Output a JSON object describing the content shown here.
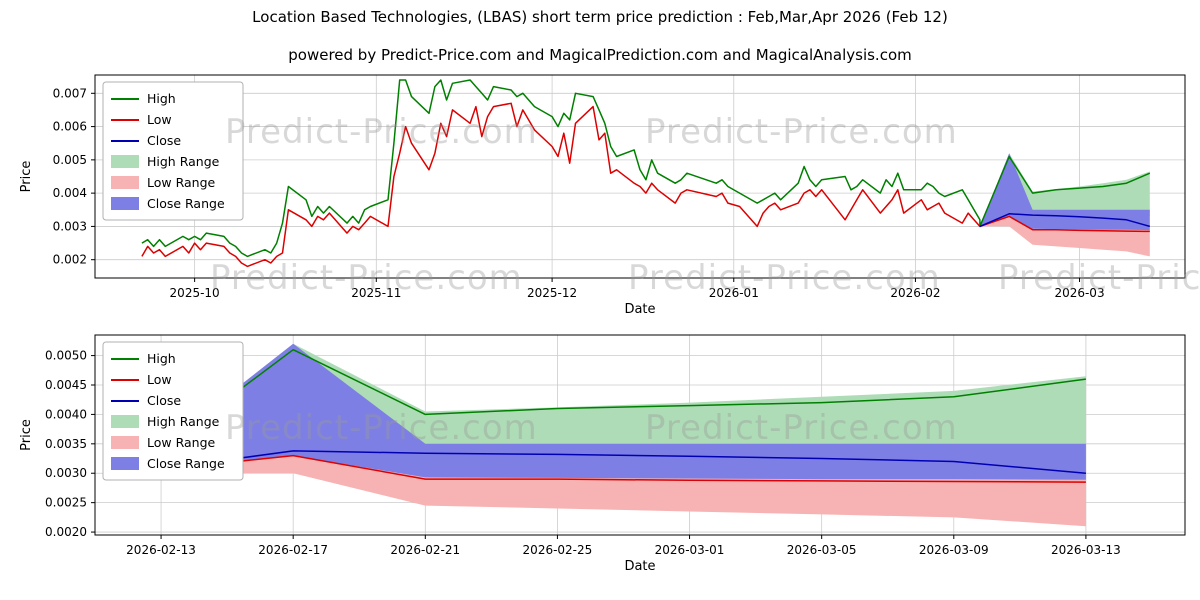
{
  "chart_data": {
    "type": "line",
    "title": "Location Based Technologies, (LBAS) short term price prediction : Feb,Mar,Apr 2026 (Feb 12)",
    "subtitle": "powered by Predict-Price.com and MagicalPrediction.com and MagicalAnalysis.com",
    "watermark": "Predict-Price.com",
    "colors": {
      "high": "#008000",
      "low": "#dd0000",
      "close": "#0000b3",
      "high_range": "#aedcb7",
      "low_range": "#f7b3b3",
      "close_range": "#7e7fe4",
      "grid": "#cccccc",
      "frame": "#000000"
    },
    "legend": [
      {
        "label": "High",
        "swatch": "line",
        "color_key": "high"
      },
      {
        "label": "Low",
        "swatch": "line",
        "color_key": "low"
      },
      {
        "label": "Close",
        "swatch": "line",
        "color_key": "close"
      },
      {
        "label": "High Range",
        "swatch": "patch",
        "color_key": "high_range"
      },
      {
        "label": "Low Range",
        "swatch": "patch",
        "color_key": "low_range"
      },
      {
        "label": "Close Range",
        "swatch": "patch",
        "color_key": "close_range"
      }
    ],
    "forecast": {
      "x": [
        "2026-02-12",
        "2026-02-17",
        "2026-02-21",
        "2026-02-25",
        "2026-03-01",
        "2026-03-05",
        "2026-03-09",
        "2026-03-13"
      ],
      "high": [
        0.003,
        0.0051,
        0.004,
        0.0041,
        0.00415,
        0.0042,
        0.0043,
        0.0046
      ],
      "low": [
        0.003,
        0.0033,
        0.0029,
        0.0029,
        0.00288,
        0.00287,
        0.00286,
        0.00285
      ],
      "close": [
        0.003,
        0.00338,
        0.00334,
        0.00332,
        0.00329,
        0.00325,
        0.0032,
        0.003
      ],
      "bands": [
        {
          "key": "high_range",
          "label": "High Range",
          "upper": [
            0.003,
            0.0052,
            0.00405,
            0.00412,
            0.0042,
            0.0043,
            0.0044,
            0.00465
          ],
          "lower": [
            0.003,
            0.00335,
            0.0033,
            0.0033,
            0.0033,
            0.0033,
            0.0033,
            0.0033
          ]
        },
        {
          "key": "low_range",
          "label": "Low Range",
          "upper": [
            0.003,
            0.00335,
            0.00295,
            0.00295,
            0.00293,
            0.00292,
            0.00291,
            0.0029
          ],
          "lower": [
            0.003,
            0.003,
            0.00245,
            0.0024,
            0.00235,
            0.0023,
            0.00225,
            0.0021
          ]
        },
        {
          "key": "close_range",
          "label": "Close Range",
          "upper": [
            0.003,
            0.0052,
            0.0035,
            0.0035,
            0.0035,
            0.0035,
            0.0035,
            0.0035
          ],
          "lower": [
            0.003,
            0.0033,
            0.00293,
            0.00292,
            0.00291,
            0.0029,
            0.0029,
            0.00289
          ]
        }
      ]
    },
    "charts": [
      {
        "id": "top",
        "xlabel": "Date",
        "ylabel": "Price",
        "xlim": [
          "2025-09-14",
          "2026-03-19"
        ],
        "ylim": [
          0.00145,
          0.00755
        ],
        "yticks": [
          {
            "v": 0.002,
            "label": "0.002"
          },
          {
            "v": 0.003,
            "label": "0.003"
          },
          {
            "v": 0.004,
            "label": "0.004"
          },
          {
            "v": 0.005,
            "label": "0.005"
          },
          {
            "v": 0.006,
            "label": "0.006"
          },
          {
            "v": 0.007,
            "label": "0.007"
          }
        ],
        "xticks": [
          {
            "v": "2025-10-01",
            "label": "2025-10"
          },
          {
            "v": "2025-11-01",
            "label": "2025-11"
          },
          {
            "v": "2025-12-01",
            "label": "2025-12"
          },
          {
            "v": "2026-01-01",
            "label": "2026-01"
          },
          {
            "v": "2026-02-01",
            "label": "2026-02"
          },
          {
            "v": "2026-03-01",
            "label": "2026-03"
          }
        ],
        "history": {
          "x": [
            "2025-09-22",
            "2025-09-23",
            "2025-09-24",
            "2025-09-25",
            "2025-09-26",
            "2025-09-29",
            "2025-09-30",
            "2025-10-01",
            "2025-10-02",
            "2025-10-03",
            "2025-10-06",
            "2025-10-07",
            "2025-10-08",
            "2025-10-09",
            "2025-10-10",
            "2025-10-13",
            "2025-10-14",
            "2025-10-15",
            "2025-10-16",
            "2025-10-17",
            "2025-10-20",
            "2025-10-21",
            "2025-10-22",
            "2025-10-23",
            "2025-10-24",
            "2025-10-27",
            "2025-10-28",
            "2025-10-29",
            "2025-10-30",
            "2025-10-31",
            "2025-11-03",
            "2025-11-04",
            "2025-11-05",
            "2025-11-06",
            "2025-11-07",
            "2025-11-10",
            "2025-11-11",
            "2025-11-12",
            "2025-11-13",
            "2025-11-14",
            "2025-11-17",
            "2025-11-18",
            "2025-11-19",
            "2025-11-20",
            "2025-11-21",
            "2025-11-24",
            "2025-11-25",
            "2025-11-26",
            "2025-11-28",
            "2025-12-01",
            "2025-12-02",
            "2025-12-03",
            "2025-12-04",
            "2025-12-05",
            "2025-12-08",
            "2025-12-09",
            "2025-12-10",
            "2025-12-11",
            "2025-12-12",
            "2025-12-15",
            "2025-12-16",
            "2025-12-17",
            "2025-12-18",
            "2025-12-19",
            "2025-12-22",
            "2025-12-23",
            "2025-12-24",
            "2025-12-29",
            "2025-12-30",
            "2025-12-31",
            "2026-01-02",
            "2026-01-05",
            "2026-01-06",
            "2026-01-07",
            "2026-01-08",
            "2026-01-09",
            "2026-01-12",
            "2026-01-13",
            "2026-01-14",
            "2026-01-15",
            "2026-01-16",
            "2026-01-20",
            "2026-01-21",
            "2026-01-22",
            "2026-01-23",
            "2026-01-26",
            "2026-01-27",
            "2026-01-28",
            "2026-01-29",
            "2026-01-30",
            "2026-02-02",
            "2026-02-03",
            "2026-02-04",
            "2026-02-05",
            "2026-02-06",
            "2026-02-09",
            "2026-02-10",
            "2026-02-11",
            "2026-02-12"
          ],
          "high": [
            0.0025,
            0.0026,
            0.0024,
            0.0026,
            0.0024,
            0.0027,
            0.0026,
            0.0027,
            0.0026,
            0.0028,
            0.0027,
            0.0025,
            0.0024,
            0.0022,
            0.0021,
            0.0023,
            0.0022,
            0.0025,
            0.0031,
            0.0042,
            0.0038,
            0.0033,
            0.0036,
            0.0034,
            0.0036,
            0.0031,
            0.0033,
            0.0031,
            0.0035,
            0.0036,
            0.0038,
            0.0055,
            0.0074,
            0.0074,
            0.0069,
            0.0064,
            0.0072,
            0.0074,
            0.0068,
            0.0073,
            0.0074,
            0.0072,
            0.007,
            0.0068,
            0.0072,
            0.0071,
            0.0069,
            0.007,
            0.0066,
            0.0063,
            0.006,
            0.0064,
            0.0062,
            0.007,
            0.0069,
            0.0065,
            0.0061,
            0.0054,
            0.0051,
            0.0053,
            0.0047,
            0.0044,
            0.005,
            0.0046,
            0.0043,
            0.0044,
            0.0046,
            0.0043,
            0.0044,
            0.0042,
            0.004,
            0.0037,
            0.0038,
            0.0039,
            0.004,
            0.0038,
            0.0043,
            0.0048,
            0.0044,
            0.0042,
            0.0044,
            0.0045,
            0.0041,
            0.0042,
            0.0044,
            0.004,
            0.0044,
            0.0042,
            0.0046,
            0.0041,
            0.0041,
            0.0043,
            0.0042,
            0.004,
            0.0039,
            0.0041,
            0.0038,
            0.0035,
            0.0032
          ],
          "low": [
            0.0021,
            0.0024,
            0.0022,
            0.0023,
            0.0021,
            0.0024,
            0.0022,
            0.0025,
            0.0023,
            0.0025,
            0.0024,
            0.0022,
            0.0021,
            0.0019,
            0.0018,
            0.002,
            0.0019,
            0.0021,
            0.0022,
            0.0035,
            0.0032,
            0.003,
            0.0033,
            0.0032,
            0.0034,
            0.0028,
            0.003,
            0.0029,
            0.0031,
            0.0033,
            0.003,
            0.0045,
            0.0052,
            0.006,
            0.0055,
            0.0047,
            0.0052,
            0.0061,
            0.0057,
            0.0065,
            0.0061,
            0.0066,
            0.0057,
            0.0063,
            0.0066,
            0.0067,
            0.006,
            0.0065,
            0.0059,
            0.0054,
            0.0051,
            0.0058,
            0.0049,
            0.0061,
            0.0066,
            0.0056,
            0.0058,
            0.0046,
            0.0047,
            0.0043,
            0.0042,
            0.004,
            0.0043,
            0.0041,
            0.0037,
            0.004,
            0.0041,
            0.0039,
            0.004,
            0.0037,
            0.0036,
            0.003,
            0.0034,
            0.0036,
            0.0037,
            0.0035,
            0.0037,
            0.004,
            0.0041,
            0.0039,
            0.0041,
            0.0032,
            0.0035,
            0.0038,
            0.0041,
            0.0034,
            0.0036,
            0.0038,
            0.0041,
            0.0034,
            0.0038,
            0.0035,
            0.0036,
            0.0037,
            0.0034,
            0.0031,
            0.0034,
            0.0032,
            0.003
          ]
        }
      },
      {
        "id": "bottom",
        "xlabel": "Date",
        "ylabel": "Price",
        "xlim": [
          "2026-02-11",
          "2026-03-16"
        ],
        "ylim": [
          0.00195,
          0.00535
        ],
        "yticks": [
          {
            "v": 0.002,
            "label": "0.0020"
          },
          {
            "v": 0.0025,
            "label": "0.0025"
          },
          {
            "v": 0.003,
            "label": "0.0030"
          },
          {
            "v": 0.0035,
            "label": "0.0035"
          },
          {
            "v": 0.004,
            "label": "0.0040"
          },
          {
            "v": 0.0045,
            "label": "0.0045"
          },
          {
            "v": 0.005,
            "label": "0.0050"
          }
        ],
        "xticks": [
          {
            "v": "2026-02-13",
            "label": "2026-02-13"
          },
          {
            "v": "2026-02-17",
            "label": "2026-02-17"
          },
          {
            "v": "2026-02-21",
            "label": "2026-02-21"
          },
          {
            "v": "2026-02-25",
            "label": "2026-02-25"
          },
          {
            "v": "2026-03-01",
            "label": "2026-03-01"
          },
          {
            "v": "2026-03-05",
            "label": "2026-03-05"
          },
          {
            "v": "2026-03-09",
            "label": "2026-03-09"
          },
          {
            "v": "2026-03-13",
            "label": "2026-03-13"
          }
        ]
      }
    ]
  }
}
